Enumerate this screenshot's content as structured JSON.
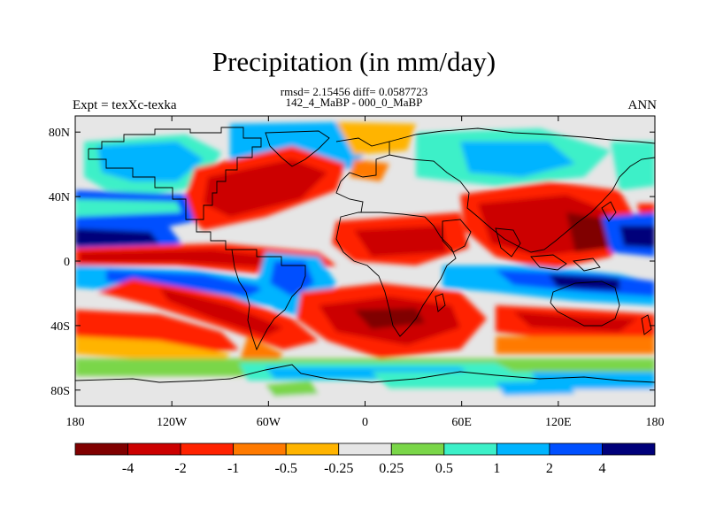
{
  "title": "Precipitation (in mm/day)",
  "stats_line": "rmsd= 2.15456 diff= 0.0587723",
  "comparison_line": "142_4_MaBP - 000_0_MaBP",
  "experiment_label": "Expt = texXc-texka",
  "season_label": "ANN",
  "map": {
    "lon_ticks": [
      "180",
      "120W",
      "60W",
      "0",
      "60E",
      "120E",
      "180"
    ],
    "lat_ticks": [
      "80N",
      "40N",
      "0",
      "40S",
      "80S"
    ],
    "lon_tick_values": [
      -180,
      -120,
      -60,
      0,
      60,
      120,
      180
    ],
    "lat_tick_values": [
      80,
      40,
      0,
      -40,
      -80
    ],
    "lon_range": [
      -180,
      180
    ],
    "lat_range": [
      -90,
      90
    ]
  },
  "colorbar": {
    "labels": [
      "-4",
      "-2",
      "-1",
      "-0.5",
      "-0.25",
      "0.25",
      "0.5",
      "1",
      "2",
      "4"
    ],
    "colors": [
      "#800000",
      "#cc0000",
      "#ff2200",
      "#ff7a00",
      "#ffb400",
      "#e6e6e6",
      "#7ad648",
      "#3cf0c8",
      "#00b4ff",
      "#0050ff",
      "#00007a"
    ]
  }
}
